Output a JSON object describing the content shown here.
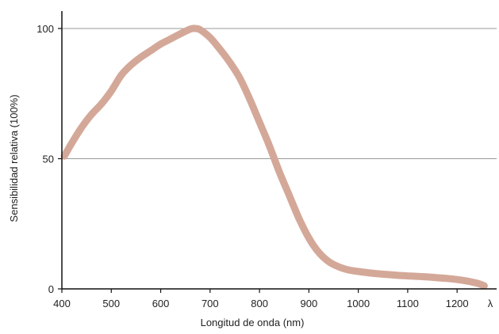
{
  "chart_data": {
    "type": "line",
    "title": "",
    "xlabel": "Longitud de onda (nm)",
    "ylabel": "Sensibilidad relativa (100%)",
    "x_axis_symbol": "λ",
    "xlim": [
      400,
      1280
    ],
    "ylim": [
      0,
      100
    ],
    "x_ticks": [
      400,
      500,
      600,
      700,
      800,
      900,
      1000,
      1100,
      1200
    ],
    "x_tick_labels": [
      "400",
      "500",
      "600",
      "700",
      "800",
      "900",
      "1000",
      "1100",
      "1200"
    ],
    "y_ticks": [
      0,
      50,
      100
    ],
    "y_tick_labels": [
      "0",
      "50",
      "100"
    ],
    "grid": {
      "horizontal_at": [
        50,
        100
      ],
      "vertical": false
    },
    "series": [
      {
        "color": "#d4a898",
        "x": [
          405,
          420,
          440,
          460,
          480,
          500,
          520,
          540,
          560,
          580,
          600,
          620,
          640,
          660,
          670,
          680,
          700,
          720,
          740,
          760,
          780,
          800,
          820,
          840,
          860,
          880,
          900,
          920,
          940,
          960,
          980,
          1000,
          1020,
          1040,
          1060,
          1080,
          1100,
          1120,
          1140,
          1160,
          1180,
          1200,
          1220,
          1240,
          1255
        ],
        "y": [
          51,
          56,
          62,
          67,
          71,
          76,
          82,
          86,
          89,
          91.5,
          94,
          96,
          98,
          99.8,
          100,
          99.5,
          96.5,
          92,
          87,
          81,
          73,
          64,
          55,
          45,
          36,
          27,
          19.5,
          14,
          10.5,
          8.5,
          7.3,
          6.7,
          6.2,
          5.8,
          5.5,
          5.2,
          5,
          4.8,
          4.6,
          4.3,
          4,
          3.6,
          3,
          2.2,
          1.2
        ]
      }
    ]
  }
}
